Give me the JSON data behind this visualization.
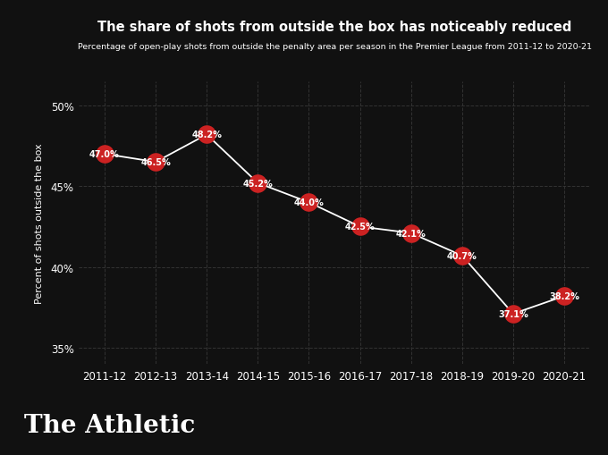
{
  "title": "The share of shots from outside the box has noticeably reduced",
  "subtitle": "Percentage of open-play shots from outside the penalty area per season in the Premier League from 2011-12 to 2020-21",
  "ylabel": "Percent of shots outside the box",
  "background_color": "#111111",
  "text_color": "#ffffff",
  "line_color": "#ffffff",
  "dot_color": "#cc2222",
  "grid_color": "#333333",
  "seasons": [
    "2011-12",
    "2012-13",
    "2013-14",
    "2014-15",
    "2015-16",
    "2016-17",
    "2017-18",
    "2018-19",
    "2019-20",
    "2020-21"
  ],
  "values": [
    47.0,
    46.5,
    48.2,
    45.2,
    44.0,
    42.5,
    42.1,
    40.7,
    37.1,
    38.2
  ],
  "ylim": [
    34.0,
    51.5
  ],
  "yticks": [
    35,
    40,
    45,
    50
  ],
  "ytick_labels": [
    "35%",
    "40%",
    "45%",
    "50%"
  ],
  "title_fontsize": 10.5,
  "subtitle_fontsize": 6.8,
  "ylabel_fontsize": 8.0,
  "tick_fontsize": 8.5,
  "annotation_fontsize": 7.0,
  "dot_size": 220,
  "athletic_text": "The Athletic",
  "athletic_fontsize": 20
}
